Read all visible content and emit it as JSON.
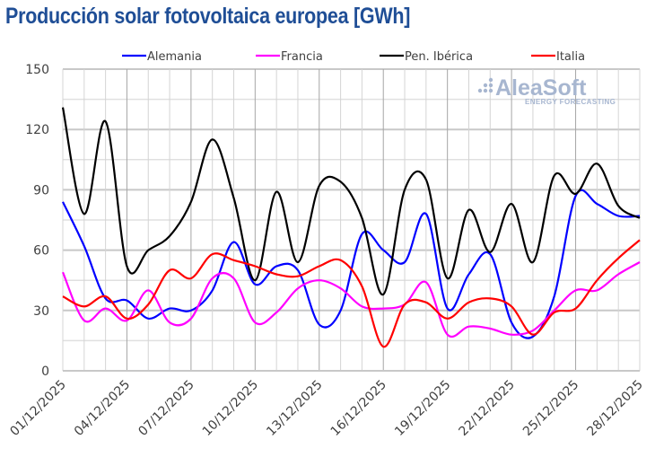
{
  "chart_data": {
    "type": "line",
    "title": "Producción solar fotovoltaica europea [GWh]",
    "xlabel": "",
    "ylabel": "",
    "ylim": [
      0,
      150
    ],
    "yticks": [
      0,
      30,
      60,
      90,
      120,
      150
    ],
    "ytick_labels": [
      "0",
      "30",
      "60",
      "90",
      "120",
      "150"
    ],
    "x": [
      "01/12/2025",
      "02/12/2025",
      "03/12/2025",
      "04/12/2025",
      "05/12/2025",
      "06/12/2025",
      "07/12/2025",
      "08/12/2025",
      "09/12/2025",
      "10/12/2025",
      "11/12/2025",
      "12/12/2025",
      "13/12/2025",
      "14/12/2025",
      "15/12/2025",
      "16/12/2025",
      "17/12/2025",
      "18/12/2025",
      "19/12/2025",
      "20/12/2025",
      "21/12/2025",
      "22/12/2025",
      "23/12/2025",
      "24/12/2025",
      "25/12/2025",
      "26/12/2025",
      "27/12/2025",
      "28/12/2025"
    ],
    "xtick_labels": [
      "01/12/2025",
      "04/12/2025",
      "07/12/2025",
      "10/12/2025",
      "13/12/2025",
      "16/12/2025",
      "19/12/2025",
      "22/12/2025",
      "25/12/2025",
      "28/12/2025"
    ],
    "grid": true,
    "legend_position": "top",
    "series": [
      {
        "name": "Alemania",
        "color": "#0000ff",
        "values": [
          84,
          62,
          36,
          35,
          26,
          31,
          30,
          40,
          64,
          43,
          52,
          50,
          23,
          30,
          68,
          60,
          54,
          78,
          31,
          48,
          58,
          24,
          17,
          37,
          87,
          83,
          77,
          77
        ]
      },
      {
        "name": "Francia",
        "color": "#ff00ff",
        "values": [
          49,
          25,
          31,
          25,
          40,
          24,
          26,
          46,
          46,
          24,
          29,
          41,
          45,
          41,
          32,
          31,
          33,
          44,
          18,
          22,
          21,
          18,
          20,
          30,
          40,
          40,
          48,
          54
        ]
      },
      {
        "name": "Pen. Ibérica",
        "color": "#000000",
        "values": [
          131,
          78,
          124,
          52,
          60,
          67,
          84,
          115,
          86,
          45,
          89,
          54,
          92,
          94,
          76,
          38,
          90,
          95,
          46,
          80,
          59,
          83,
          54,
          97,
          88,
          103,
          82,
          76
        ]
      },
      {
        "name": "Italia",
        "color": "#ff0000",
        "values": [
          37,
          32,
          37,
          26,
          33,
          50,
          46,
          58,
          55,
          52,
          48,
          47,
          52,
          55,
          42,
          12,
          33,
          34,
          26,
          34,
          36,
          32,
          18,
          29,
          31,
          45,
          56,
          65
        ]
      }
    ]
  },
  "watermark": {
    "brand": "AleaSoft",
    "tagline": "ENERGY FORECASTING"
  }
}
